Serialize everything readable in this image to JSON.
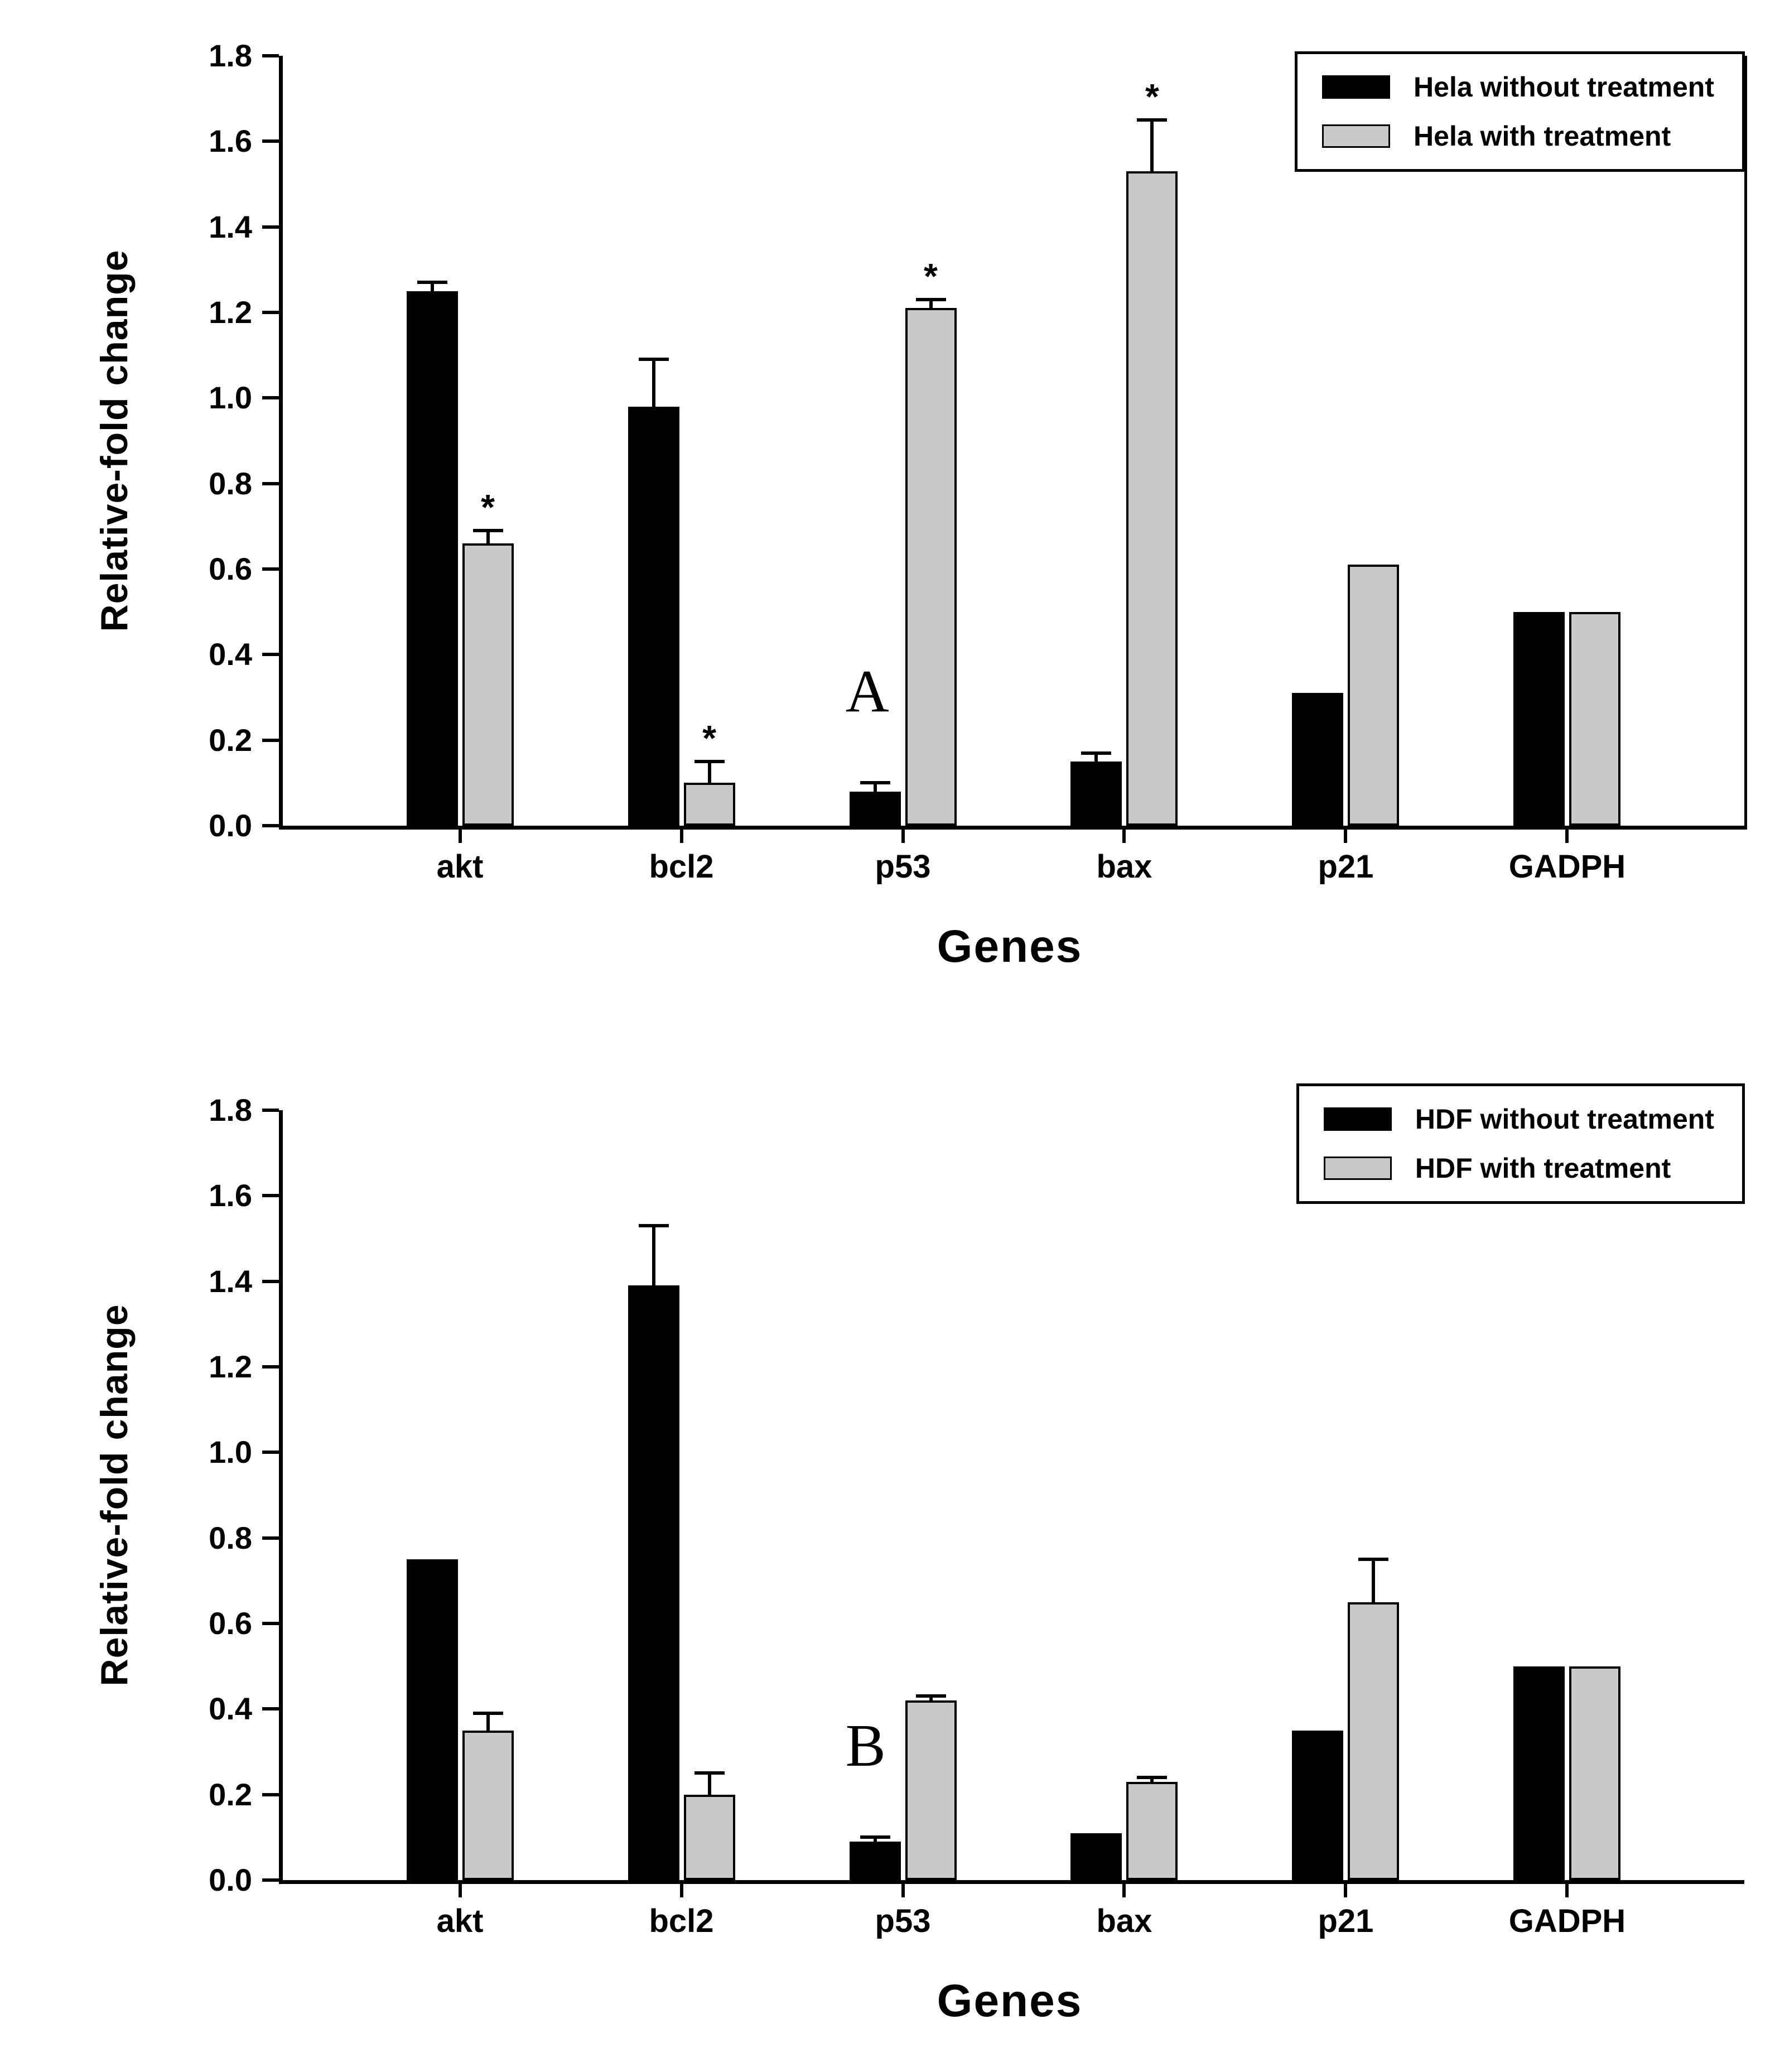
{
  "figure": {
    "background": "#ffffff",
    "bar_black": "#000000",
    "bar_gray": "#c9c9c9"
  },
  "chart_data": [
    {
      "type": "bar",
      "panel_label": "A",
      "title": "",
      "xlabel": "Genes",
      "ylabel": "Relative-fold change",
      "ylim": [
        0,
        1.8
      ],
      "ytick_step": 0.2,
      "grid": false,
      "legend_position": "top-right",
      "categories": [
        "akt",
        "bcl2",
        "p53",
        "bax",
        "p21",
        "GADPH"
      ],
      "series": [
        {
          "name": "Hela without treatment",
          "color": "#000000",
          "values": [
            1.25,
            0.98,
            0.08,
            0.15,
            0.31,
            0.5
          ],
          "errors": [
            0.02,
            0.11,
            0.02,
            0.02,
            0,
            0
          ],
          "significance": [
            "",
            "",
            "",
            "",
            "",
            ""
          ]
        },
        {
          "name": "Hela with treatment",
          "color": "#c9c9c9",
          "values": [
            0.66,
            0.1,
            1.21,
            1.53,
            0.61,
            0.5
          ],
          "errors": [
            0.03,
            0.05,
            0.02,
            0.12,
            0,
            0
          ],
          "significance": [
            "*",
            "*",
            "*",
            "*",
            "",
            ""
          ]
        }
      ]
    },
    {
      "type": "bar",
      "panel_label": "B",
      "title": "",
      "xlabel": "Genes",
      "ylabel": "Relative-fold change",
      "ylim": [
        0,
        1.8
      ],
      "ytick_step": 0.2,
      "grid": false,
      "legend_position": "top-right",
      "categories": [
        "akt",
        "bcl2",
        "p53",
        "bax",
        "p21",
        "GADPH"
      ],
      "series": [
        {
          "name": "HDF without treatment",
          "color": "#000000",
          "values": [
            0.75,
            1.39,
            0.09,
            0.11,
            0.35,
            0.5
          ],
          "errors": [
            0,
            0.14,
            0.01,
            0,
            0,
            0
          ],
          "significance": [
            "",
            "",
            "",
            "",
            "",
            ""
          ]
        },
        {
          "name": "HDF with treatment",
          "color": "#c9c9c9",
          "values": [
            0.35,
            0.2,
            0.42,
            0.23,
            0.65,
            0.5
          ],
          "errors": [
            0.04,
            0.05,
            0.01,
            0.01,
            0.1,
            0
          ],
          "significance": [
            "",
            "",
            "",
            "",
            "",
            ""
          ]
        }
      ]
    }
  ]
}
